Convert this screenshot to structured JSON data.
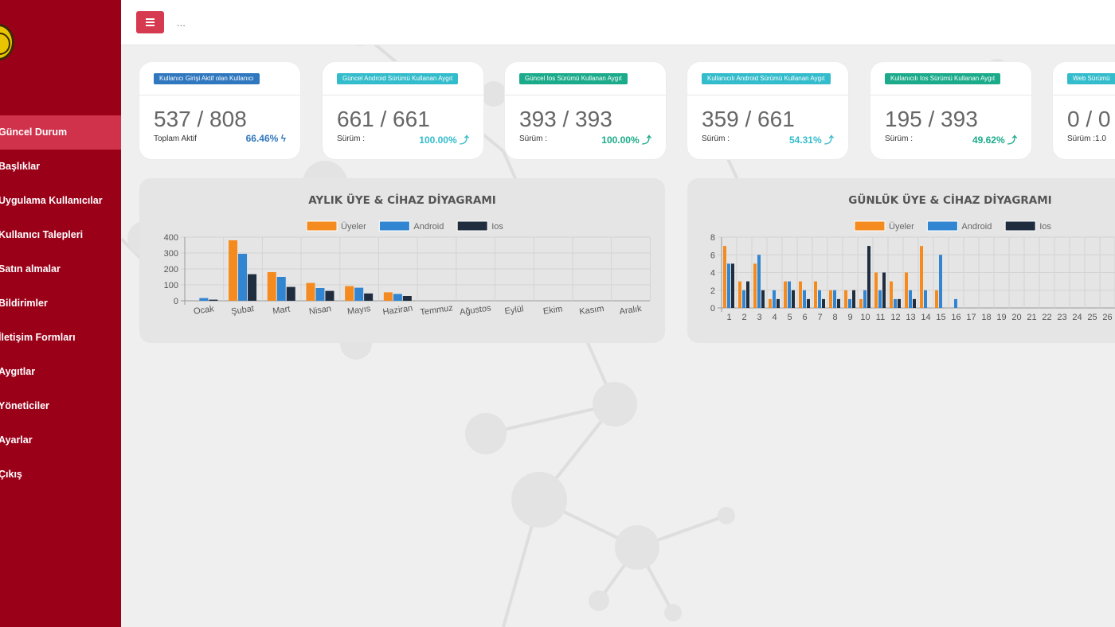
{
  "sidebar": {
    "items": [
      {
        "label": "Güncel Durum",
        "active": true
      },
      {
        "label": "Başlıklar"
      },
      {
        "label": "Uygulama Kullanıcılar"
      },
      {
        "label": "Kullanıcı Talepleri"
      },
      {
        "label": "Satın almalar"
      },
      {
        "label": "Bildirimler"
      },
      {
        "label": "İletişim Formları"
      },
      {
        "label": "Aygıtlar"
      },
      {
        "label": "Yöneticiler"
      },
      {
        "label": "Ayarlar"
      },
      {
        "label": "Çıkış"
      }
    ]
  },
  "topbar": {
    "breadcrumb": "..."
  },
  "cards": [
    {
      "badge": "Kullanıcı Girişi Aktif olan Kullanıcı",
      "badge_color": "#2f77be",
      "value": "537 / 808",
      "label": "Toplam Aktif",
      "percent": "66.46%",
      "icon": "bolt-icon",
      "pct_color": "#2f77be"
    },
    {
      "badge": "Güncel Android Sürümü Kullanan Aygıt",
      "badge_color": "#33bccb",
      "value": "661 / 661",
      "label": "Sürüm :",
      "percent": "100.00%",
      "icon": "level-up-icon",
      "pct_color": "#33bccb"
    },
    {
      "badge": "Güncel Ios Sürümü Kullanan Aygıt",
      "badge_color": "#1bab8a",
      "value": "393 / 393",
      "label": "Sürüm :",
      "percent": "100.00%",
      "icon": "level-up-icon",
      "pct_color": "#1bab8a"
    },
    {
      "badge": "Kullanıcılı Android Sürümü Kullanan Aygıt",
      "badge_color": "#33bccb",
      "value": "359 / 661",
      "label": "Sürüm :",
      "percent": "54.31%",
      "icon": "level-up-icon",
      "pct_color": "#33bccb"
    },
    {
      "badge": "Kullanıcılı Ios Sürümü Kullanan Aygıt",
      "badge_color": "#1bab8a",
      "value": "195 / 393",
      "label": "Sürüm :",
      "percent": "49.62%",
      "icon": "level-up-icon",
      "pct_color": "#1bab8a"
    },
    {
      "badge": "Web Sürümü",
      "badge_color": "#33bccb",
      "value": "0 / 0",
      "label": "Sürüm :1.0",
      "percent": "",
      "icon": "",
      "pct_color": "#33bccb"
    }
  ],
  "chart_data": [
    {
      "type": "bar",
      "title": "AYLIK ÜYE & CİHAZ DİYAGRAMI",
      "categories": [
        "Ocak",
        "Şubat",
        "Mart",
        "Nisan",
        "Mayıs",
        "Haziran",
        "Temmuz",
        "Ağustos",
        "Eylül",
        "Ekim",
        "Kasım",
        "Aralık"
      ],
      "series": [
        {
          "name": "Üyeler",
          "color": "#f58b1f",
          "values": [
            0,
            380,
            180,
            112,
            92,
            53,
            0,
            0,
            0,
            0,
            0,
            0
          ]
        },
        {
          "name": "Android",
          "color": "#3285d0",
          "values": [
            17,
            295,
            150,
            80,
            82,
            43,
            0,
            0,
            0,
            0,
            0,
            0
          ]
        },
        {
          "name": "Ios",
          "color": "#1f2d3f",
          "values": [
            7,
            167,
            87,
            62,
            46,
            30,
            0,
            0,
            0,
            0,
            0,
            0
          ]
        }
      ],
      "yticks": [
        "0",
        "100",
        "200",
        "300",
        "400"
      ],
      "ylim": [
        0,
        400
      ],
      "legend": "top-center"
    },
    {
      "type": "bar",
      "title": "GÜNLÜK ÜYE & CİHAZ DİYAGRAMI",
      "categories": [
        "1",
        "2",
        "3",
        "4",
        "5",
        "6",
        "7",
        "8",
        "9",
        "10",
        "11",
        "12",
        "13",
        "14",
        "15",
        "16",
        "17",
        "18",
        "19",
        "20",
        "21",
        "22",
        "23",
        "24",
        "25",
        "26"
      ],
      "series": [
        {
          "name": "Üyeler",
          "color": "#f58b1f",
          "values": [
            7,
            3,
            5,
            1,
            3,
            3,
            3,
            2,
            2,
            1,
            4,
            3,
            4,
            7,
            2,
            0,
            0,
            0,
            0,
            0,
            0,
            0,
            0,
            0,
            0,
            0
          ]
        },
        {
          "name": "Android",
          "color": "#3285d0",
          "values": [
            5,
            2,
            6,
            2,
            3,
            2,
            2,
            2,
            1,
            2,
            2,
            1,
            2,
            2,
            6,
            1,
            0,
            0,
            0,
            0,
            0,
            0,
            0,
            0,
            0,
            0
          ]
        },
        {
          "name": "Ios",
          "color": "#1f2d3f",
          "values": [
            5,
            3,
            2,
            1,
            2,
            1,
            1,
            1,
            2,
            7,
            4,
            1,
            1,
            0,
            0,
            0,
            0,
            0,
            0,
            0,
            0,
            0,
            0,
            0,
            0,
            0
          ]
        }
      ],
      "yticks": [
        "0",
        "2",
        "4",
        "6",
        "8"
      ],
      "ylim": [
        0,
        8
      ],
      "legend": "top-center"
    }
  ]
}
